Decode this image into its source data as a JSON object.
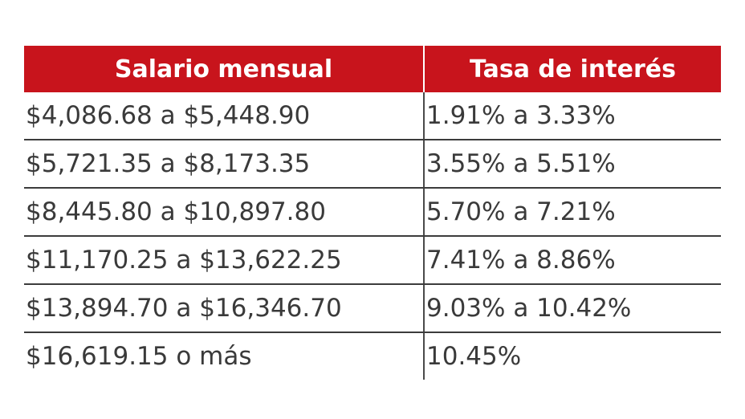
{
  "table": {
    "headers": [
      "Salario mensual",
      "Tasa de interés"
    ],
    "rows": [
      {
        "salary": "$4,086.68 a $5,448.90",
        "rate": "1.91% a 3.33%"
      },
      {
        "salary": "$5,721.35 a $8,173.35",
        "rate": "3.55% a 5.51%"
      },
      {
        "salary": "$8,445.80 a $10,897.80",
        "rate": "5.70% a 7.21%"
      },
      {
        "salary": "$11,170.25 a $13,622.25",
        "rate": "7.41% a 8.86%"
      },
      {
        "salary": "$13,894.70 a $16,346.70",
        "rate": "9.03% a 10.42%"
      },
      {
        "salary": "$16,619.15 o más",
        "rate": "10.45%"
      }
    ]
  },
  "colors": {
    "header_background": "#c8141c",
    "header_text": "#ffffff",
    "body_text": "#3a3a3a",
    "rule": "#3c3c3c"
  }
}
